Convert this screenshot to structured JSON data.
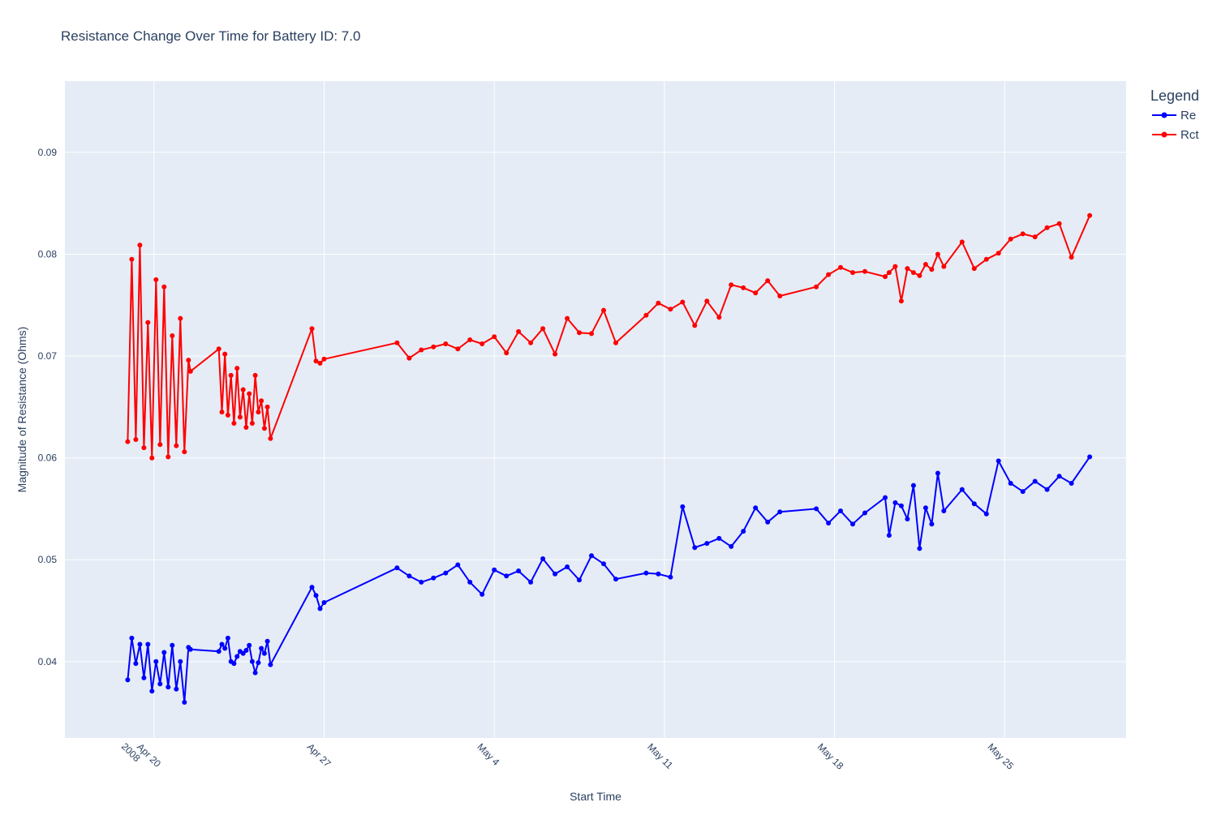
{
  "chart_data": {
    "type": "line",
    "title": "Resistance Change Over Time for Battery ID: 7.0",
    "xlabel": "Start Time",
    "ylabel": "Magnitude of Resistance (Ohms)",
    "legend_title": "Legend",
    "legend_position": "top-right, outside plot",
    "grid": true,
    "x_ticks": [
      {
        "date": "2008-04-20",
        "label": "Apr 20",
        "sublabel": "2008"
      },
      {
        "date": "2008-04-27",
        "label": "Apr 27",
        "sublabel": ""
      },
      {
        "date": "2008-05-04",
        "label": "May 4",
        "sublabel": ""
      },
      {
        "date": "2008-05-11",
        "label": "May 11",
        "sublabel": ""
      },
      {
        "date": "2008-05-18",
        "label": "May 18",
        "sublabel": ""
      },
      {
        "date": "2008-05-25",
        "label": "May 25",
        "sublabel": ""
      }
    ],
    "y_ticks": [
      0.04,
      0.05,
      0.06,
      0.07,
      0.08,
      0.09
    ],
    "xlim": [
      "2008-04-16T08:00",
      "2008-05-30T00:00"
    ],
    "ylim": [
      0.0325,
      0.097
    ],
    "colors": {
      "Re": "#0000ff",
      "Rct": "#ff0000",
      "plot_bg": "#e5ecf6",
      "grid": "#ffffff",
      "text": "#2a3f5f"
    },
    "x": [
      "2008-04-18T22:00",
      "2008-04-19T02:00",
      "2008-04-19T06:00",
      "2008-04-19T10:00",
      "2008-04-19T14:00",
      "2008-04-19T18:00",
      "2008-04-19T22:00",
      "2008-04-20T02:00",
      "2008-04-20T06:00",
      "2008-04-20T10:00",
      "2008-04-20T14:00",
      "2008-04-20T18:00",
      "2008-04-20T22:00",
      "2008-04-21T02:00",
      "2008-04-21T06:00",
      "2008-04-21T10:00",
      "2008-04-21T12:00",
      "2008-04-22T16:00",
      "2008-04-22T19:00",
      "2008-04-22T22:00",
      "2008-04-23T01:00",
      "2008-04-23T04:00",
      "2008-04-23T07:00",
      "2008-04-23T10:00",
      "2008-04-23T13:00",
      "2008-04-23T16:00",
      "2008-04-23T19:00",
      "2008-04-23T22:00",
      "2008-04-24T01:00",
      "2008-04-24T04:00",
      "2008-04-24T07:00",
      "2008-04-24T10:00",
      "2008-04-24T13:00",
      "2008-04-24T16:00",
      "2008-04-24T19:00",
      "2008-04-26T12:00",
      "2008-04-26T16:00",
      "2008-04-26T20:00",
      "2008-04-27T00:00",
      "2008-04-30T00:00",
      "2008-04-30T12:00",
      "2008-05-01T00:00",
      "2008-05-01T12:00",
      "2008-05-02T00:00",
      "2008-05-02T12:00",
      "2008-05-03T00:00",
      "2008-05-03T12:00",
      "2008-05-04T00:00",
      "2008-05-04T12:00",
      "2008-05-05T00:00",
      "2008-05-05T12:00",
      "2008-05-06T00:00",
      "2008-05-06T12:00",
      "2008-05-07T00:00",
      "2008-05-07T12:00",
      "2008-05-08T00:00",
      "2008-05-08T12:00",
      "2008-05-09T00:00",
      "2008-05-10T06:00",
      "2008-05-10T18:00",
      "2008-05-11T06:00",
      "2008-05-11T18:00",
      "2008-05-12T06:00",
      "2008-05-12T18:00",
      "2008-05-13T06:00",
      "2008-05-13T18:00",
      "2008-05-14T06:00",
      "2008-05-14T18:00",
      "2008-05-15T06:00",
      "2008-05-15T18:00",
      "2008-05-17T06:00",
      "2008-05-17T18:00",
      "2008-05-18T06:00",
      "2008-05-18T18:00",
      "2008-05-19T06:00",
      "2008-05-20T02:00",
      "2008-05-20T06:00",
      "2008-05-20T12:00",
      "2008-05-20T18:00",
      "2008-05-21T00:00",
      "2008-05-21T06:00",
      "2008-05-21T12:00",
      "2008-05-21T18:00",
      "2008-05-22T00:00",
      "2008-05-22T06:00",
      "2008-05-22T12:00",
      "2008-05-23T06:00",
      "2008-05-23T18:00",
      "2008-05-24T06:00",
      "2008-05-24T18:00",
      "2008-05-25T06:00",
      "2008-05-25T18:00",
      "2008-05-26T06:00",
      "2008-05-26T18:00",
      "2008-05-27T06:00",
      "2008-05-27T18:00",
      "2008-05-28T12:00"
    ],
    "series": [
      {
        "name": "Re",
        "values": [
          0.0382,
          0.0423,
          0.0398,
          0.0417,
          0.0384,
          0.0417,
          0.0371,
          0.04,
          0.0378,
          0.0409,
          0.0375,
          0.0416,
          0.0373,
          0.04,
          0.036,
          0.0414,
          0.0412,
          0.041,
          0.0417,
          0.0413,
          0.0423,
          0.04,
          0.0398,
          0.0405,
          0.041,
          0.0408,
          0.0411,
          0.0416,
          0.04,
          0.0389,
          0.0399,
          0.0413,
          0.0408,
          0.042,
          0.0397,
          0.0473,
          0.0465,
          0.0452,
          0.0458,
          0.0492,
          0.0484,
          0.0478,
          0.0482,
          0.0487,
          0.0495,
          0.0478,
          0.0466,
          0.049,
          0.0484,
          0.0489,
          0.0478,
          0.0501,
          0.0486,
          0.0493,
          0.048,
          0.0504,
          0.0496,
          0.0481,
          0.0487,
          0.0486,
          0.0483,
          0.0552,
          0.0512,
          0.0516,
          0.0521,
          0.0513,
          0.0528,
          0.0551,
          0.0537,
          0.0547,
          0.055,
          0.0536,
          0.0548,
          0.0535,
          0.0546,
          0.0561,
          0.0524,
          0.0556,
          0.0553,
          0.054,
          0.0573,
          0.0511,
          0.0551,
          0.0535,
          0.0585,
          0.0548,
          0.0569,
          0.0555,
          0.0545,
          0.0597,
          0.0575,
          0.0567,
          0.0577,
          0.0569,
          0.0582,
          0.0575,
          0.0601
        ]
      },
      {
        "name": "Rct",
        "values": [
          0.0616,
          0.0795,
          0.0618,
          0.0809,
          0.061,
          0.0733,
          0.06,
          0.0775,
          0.0613,
          0.0768,
          0.0601,
          0.072,
          0.0612,
          0.0737,
          0.0606,
          0.0696,
          0.0685,
          0.0707,
          0.0645,
          0.0702,
          0.0642,
          0.0681,
          0.0634,
          0.0688,
          0.064,
          0.0667,
          0.063,
          0.0663,
          0.0634,
          0.0681,
          0.0645,
          0.0656,
          0.0629,
          0.065,
          0.0619,
          0.0727,
          0.0695,
          0.0693,
          0.0697,
          0.0713,
          0.0698,
          0.0706,
          0.0709,
          0.0712,
          0.0707,
          0.0716,
          0.0712,
          0.0719,
          0.0703,
          0.0724,
          0.0713,
          0.0727,
          0.0702,
          0.0737,
          0.0723,
          0.0722,
          0.0745,
          0.0713,
          0.074,
          0.0752,
          0.0746,
          0.0753,
          0.073,
          0.0754,
          0.0738,
          0.077,
          0.0767,
          0.0762,
          0.0774,
          0.0759,
          0.0768,
          0.078,
          0.0787,
          0.0782,
          0.0783,
          0.0778,
          0.0782,
          0.0788,
          0.0754,
          0.0786,
          0.0782,
          0.0779,
          0.079,
          0.0785,
          0.08,
          0.0788,
          0.0812,
          0.0786,
          0.0795,
          0.0801,
          0.0815,
          0.082,
          0.0817,
          0.0826,
          0.083,
          0.0797,
          0.0838
        ]
      }
    ]
  }
}
